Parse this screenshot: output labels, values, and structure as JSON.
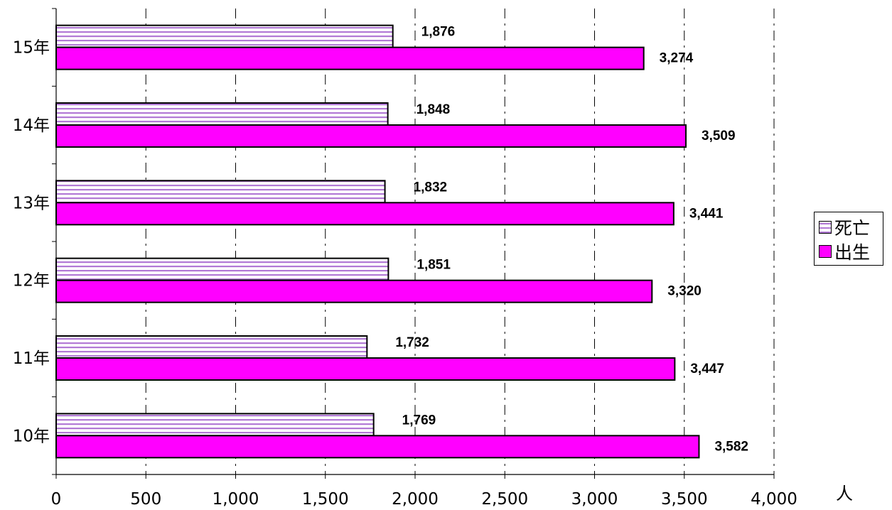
{
  "chart_data": {
    "type": "bar",
    "orientation": "horizontal",
    "categories": [
      "15年",
      "14年",
      "13年",
      "12年",
      "11年",
      "10年"
    ],
    "series": [
      {
        "name": "死亡",
        "values": [
          1876,
          1848,
          1832,
          1851,
          1732,
          1769
        ],
        "labels": [
          "1,876",
          "1,848",
          "1,832",
          "1,851",
          "1,732",
          "1,769"
        ],
        "color": "#ffffff",
        "stripe_color": "#b27ad6"
      },
      {
        "name": "出生",
        "values": [
          3274,
          3509,
          3441,
          3320,
          3447,
          3582
        ],
        "labels": [
          "3,274",
          "3,509",
          "3,441",
          "3,320",
          "3,447",
          "3,582"
        ],
        "color": "#ff00ff"
      }
    ],
    "xlim": [
      0,
      4000
    ],
    "x_ticks": [
      0,
      500,
      1000,
      1500,
      2000,
      2500,
      3000,
      3500,
      4000
    ],
    "x_tick_labels": [
      "0",
      "500",
      "1,000",
      "1,500",
      "2,000",
      "2,500",
      "3,000",
      "3,500",
      "4,000"
    ],
    "unit": "人",
    "grid": "vertical dash-dot",
    "legend_position": "right"
  }
}
